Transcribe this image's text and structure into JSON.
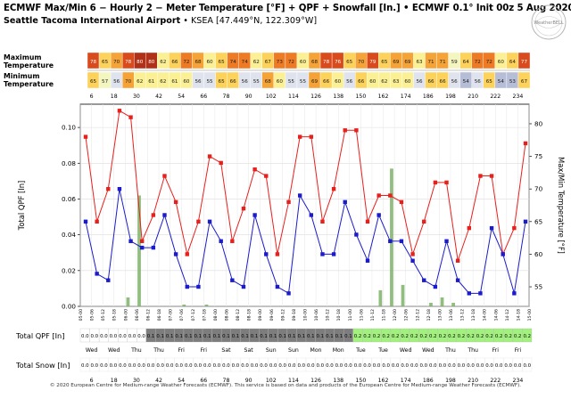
{
  "header": {
    "title": "ECMWF Max/Min 6 − Hourly 2 − Meter Temperature [°F] + QPF + Snowfall [In.] • ECMWF 0.1° Init 00z 5 Aug 2020",
    "station": "Seattle Tacoma International Airport",
    "station_meta": " • KSEA [47.449°N, 122.309°W]",
    "logo_text": "WeatherBELL",
    "footer": "© 2020 European Centre for Medium-range Weather Forecasts (ECMWF). This service is based on data and products of the European Centre for Medium-range Weather Forecasts (ECMWF)."
  },
  "colors": {
    "max_line": "#e8201c",
    "min_line": "#1b1bcc",
    "qpf_bar": "#7fb26a",
    "qpf_zero": "#ffffff",
    "qpf_low": "#7d7d7d",
    "qpf_mid": "#a2f07e"
  },
  "chart_data": {
    "type": "line",
    "temperature_table": {
      "max_label": "Maximum Temperature",
      "min_label": "Minimum Temperature",
      "max_values": [
        78,
        65,
        70,
        78,
        80,
        80,
        62,
        66,
        72,
        68,
        60,
        65,
        74,
        74,
        62,
        67,
        73,
        72,
        60,
        68,
        78,
        76,
        65,
        70,
        79,
        65,
        69,
        69,
        63,
        71,
        71,
        59,
        64,
        72,
        72,
        60,
        64,
        77
      ],
      "min_values": [
        65,
        57,
        56,
        70,
        62,
        61,
        62,
        61,
        60,
        56,
        55,
        65,
        66,
        56,
        55,
        68,
        60,
        55,
        55,
        69,
        66,
        60,
        56,
        66,
        60,
        62,
        63,
        60,
        56,
        66,
        66,
        56,
        54,
        56,
        65,
        54,
        53,
        67
      ]
    },
    "top_ticks": [
      "6",
      "18",
      "30",
      "42",
      "54",
      "66",
      "78",
      "90",
      "102",
      "114",
      "126",
      "138",
      "150",
      "162",
      "174",
      "186",
      "198",
      "210",
      "222",
      "234"
    ],
    "bottom_ticks": [
      "6",
      "18",
      "30",
      "42",
      "54",
      "66",
      "78",
      "90",
      "102",
      "114",
      "126",
      "138",
      "150",
      "162",
      "174",
      "186",
      "198",
      "210",
      "222",
      "234"
    ],
    "x_time_labels": [
      "05-00",
      "05-06",
      "05-12",
      "05-18",
      "06-00",
      "06-06",
      "06-12",
      "06-18",
      "07-00",
      "07-06",
      "07-12",
      "07-18",
      "08-00",
      "08-06",
      "08-12",
      "08-18",
      "09-00",
      "09-06",
      "09-12",
      "09-18",
      "10-00",
      "10-06",
      "10-12",
      "10-18",
      "11-00",
      "11-06",
      "11-12",
      "11-18",
      "12-00",
      "12-06",
      "12-12",
      "12-18",
      "13-00",
      "13-06",
      "13-12",
      "13-18",
      "14-00",
      "14-06",
      "14-12",
      "14-18",
      "15-00"
    ],
    "x_day_labels": [
      "Wed",
      "Wed",
      "Thu",
      "Thu",
      "Fri",
      "Fri",
      "Sat",
      "Sat",
      "Sun",
      "Sun",
      "Mon",
      "Mon",
      "Tue",
      "Tue",
      "Wed",
      "Wed",
      "Thu",
      "Thu",
      "Fri",
      "Fri"
    ],
    "ylabel_left": "Total QPF [In]",
    "ylabel_right": "Max/Min Temperature [°F]",
    "y_left_ticks": [
      "0.00",
      "0.02",
      "0.04",
      "0.06",
      "0.08",
      "0.10"
    ],
    "y_left_range": [
      0,
      0.113
    ],
    "y_right_ticks": [
      "55",
      "60",
      "65",
      "70",
      "75",
      "80"
    ],
    "y_right_range": [
      52,
      83
    ],
    "series": [
      {
        "values": [
          78,
          65,
          70,
          82,
          81,
          62,
          66,
          72,
          68,
          60,
          65,
          75,
          74,
          62,
          67,
          73,
          72,
          60,
          68,
          78,
          78,
          65,
          70,
          79,
          79,
          65,
          69,
          69,
          68,
          60,
          65,
          71,
          71,
          59,
          64,
          72,
          72,
          60,
          64,
          77
        ]
      },
      {
        "values": [
          65,
          57,
          56,
          70,
          62,
          61,
          61,
          66,
          60,
          55,
          55,
          65,
          62,
          56,
          55,
          66,
          60,
          55,
          54,
          69,
          66,
          60,
          60,
          68,
          63,
          59,
          66,
          62,
          62,
          59,
          56,
          55,
          62,
          56,
          54,
          54,
          64,
          60,
          54,
          65
        ]
      }
    ],
    "qpf_bars": [
      0,
      0,
      0,
      0,
      0,
      0,
      0,
      0,
      0.005,
      0,
      0.062,
      0,
      0,
      0,
      0,
      0,
      0,
      0,
      0.001,
      0,
      0,
      0,
      0.001,
      0,
      0,
      0,
      0,
      0,
      0,
      0,
      0,
      0,
      0,
      0,
      0,
      0,
      0,
      0,
      0,
      0,
      0,
      0,
      0,
      0,
      0,
      0,
      0,
      0,
      0,
      0,
      0,
      0,
      0,
      0.009,
      0,
      0.077,
      0,
      0.012,
      0,
      0,
      0,
      0,
      0.002,
      0,
      0.005,
      0,
      0.002,
      0,
      0,
      0,
      0,
      0,
      0,
      0,
      0,
      0,
      0,
      0,
      0,
      0
    ],
    "qpf_row_label": "Total QPF [In]",
    "qpf_totals": [
      "0.0",
      "0.0",
      "0.0",
      "0.0",
      "0.0",
      "0.0",
      "0.0",
      "0.1",
      "0.1",
      "0.1",
      "0.1",
      "0.1",
      "0.1",
      "0.1",
      "0.1",
      "0.1",
      "0.1",
      "0.1",
      "0.1",
      "0.1",
      "0.1",
      "0.1",
      "0.1",
      "0.1",
      "0.1",
      "0.1",
      "0.1",
      "0.1",
      "0.1",
      "0.2",
      "0.2",
      "0.2",
      "0.2",
      "0.2",
      "0.2",
      "0.2",
      "0.2",
      "0.2",
      "0.2",
      "0.2",
      "0.2",
      "0.2",
      "0.2",
      "0.2",
      "0.2",
      "0.2",
      "0.2",
      "0.2"
    ],
    "snow_row_label": "Total Snow [In]",
    "snow_totals": [
      "0.0",
      "0.0",
      "0.0",
      "0.0",
      "0.0",
      "0.0",
      "0.0",
      "0.0",
      "0.0",
      "0.0",
      "0.0",
      "0.0",
      "0.0",
      "0.0",
      "0.0",
      "0.0",
      "0.0",
      "0.0",
      "0.0",
      "0.0",
      "0.0",
      "0.0",
      "0.0",
      "0.0",
      "0.0",
      "0.0",
      "0.0",
      "0.0",
      "0.0",
      "0.0",
      "0.0",
      "0.0",
      "0.0",
      "0.0",
      "0.0",
      "0.0",
      "0.0",
      "0.0",
      "0.0",
      "0.0",
      "0.0",
      "0.0",
      "0.0",
      "0.0",
      "0.0",
      "0.0",
      "0.0",
      "0.0"
    ]
  }
}
